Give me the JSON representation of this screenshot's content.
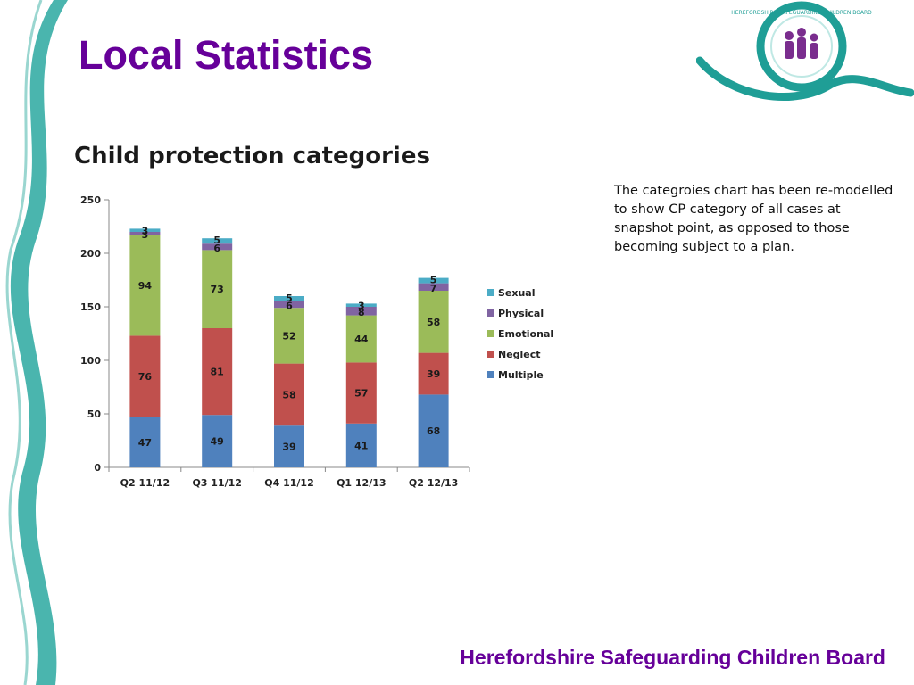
{
  "slide": {
    "title": "Local Statistics",
    "footer": "Herefordshire Safeguarding Children Board",
    "note": "The categroies chart has been re-modelled to show CP category of all cases at snapshot point, as opposed to those becoming subject to a plan."
  },
  "logo": {
    "text": "HEREFORDSHIRE SAFEGUARDING CHILDREN BOARD",
    "icon": "family-figures-icon"
  },
  "colors": {
    "accent": "#660099",
    "ribbon": "#2aa8a0",
    "logo_circle": "#1f9e96"
  },
  "chart_data": {
    "type": "bar",
    "stacked": true,
    "title": "Child protection categories",
    "categories": [
      "Q2 11/12",
      "Q3 11/12",
      "Q4 11/12",
      "Q1 12/13",
      "Q2 12/13"
    ],
    "series": [
      {
        "name": "Multiple",
        "color": "#4f81bd",
        "values": [
          47,
          49,
          39,
          41,
          68
        ]
      },
      {
        "name": "Neglect",
        "color": "#c0504d",
        "values": [
          76,
          81,
          58,
          57,
          39
        ]
      },
      {
        "name": "Emotional",
        "color": "#9bbb59",
        "values": [
          94,
          73,
          52,
          44,
          58
        ]
      },
      {
        "name": "Physical",
        "color": "#8064a2",
        "values": [
          3,
          6,
          6,
          8,
          7
        ]
      },
      {
        "name": "Sexual",
        "color": "#4bacc6",
        "values": [
          3,
          5,
          5,
          3,
          5
        ]
      }
    ],
    "ylim": [
      0,
      250
    ],
    "yticks": [
      0,
      50,
      100,
      150,
      200,
      250
    ],
    "xlabel": "",
    "ylabel": "",
    "grid": false,
    "legend": "right"
  }
}
